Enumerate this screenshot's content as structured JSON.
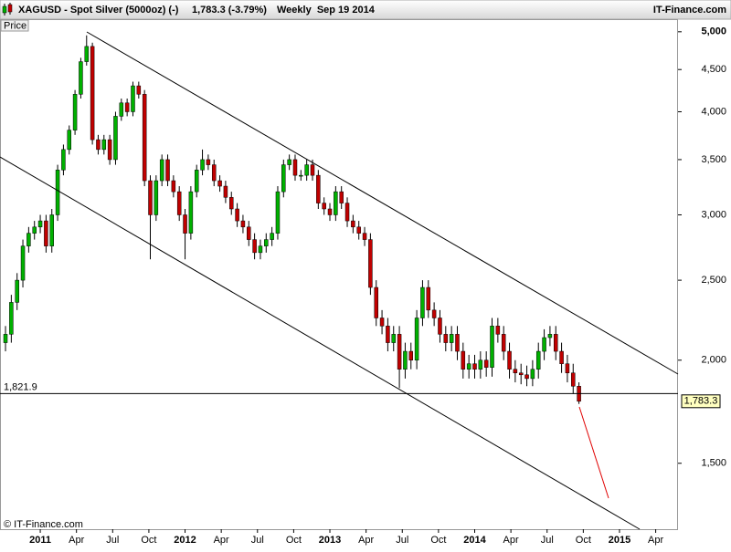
{
  "chart_data": {
    "type": "candlestick",
    "title": "XAGUSD - Spot Silver (5000oz) (-)",
    "quote": "1,783.3 (-3.79%)",
    "period": "Weekly  Sep 19 2014",
    "source": "IT-Finance.com",
    "y_label": "Price",
    "copyright": "© IT-Finance.com",
    "log_scale": true,
    "up_color": "#00b000",
    "down_color": "#c00000",
    "x": [
      2010.76,
      2010.8,
      2010.84,
      2010.88,
      2010.92,
      2010.96,
      2011,
      2011.04,
      2011.08,
      2011.12,
      2011.16,
      2011.2,
      2011.24,
      2011.28,
      2011.32,
      2011.36,
      2011.4,
      2011.44,
      2011.48,
      2011.52,
      2011.56,
      2011.6,
      2011.64,
      2011.68,
      2011.72,
      2011.76,
      2011.8,
      2011.84,
      2011.88,
      2011.92,
      2011.96,
      2012,
      2012.04,
      2012.08,
      2012.12,
      2012.16,
      2012.2,
      2012.24,
      2012.28,
      2012.32,
      2012.36,
      2012.4,
      2012.44,
      2012.48,
      2012.52,
      2012.56,
      2012.6,
      2012.64,
      2012.68,
      2012.72,
      2012.76,
      2012.8,
      2012.84,
      2012.88,
      2012.92,
      2012.96,
      2013,
      2013.04,
      2013.08,
      2013.12,
      2013.16,
      2013.2,
      2013.24,
      2013.28,
      2013.32,
      2013.36,
      2013.4,
      2013.44,
      2013.48,
      2013.52,
      2013.56,
      2013.6,
      2013.64,
      2013.68,
      2013.72,
      2013.76,
      2013.8,
      2013.84,
      2013.88,
      2013.92,
      2013.96,
      2014,
      2014.04,
      2014.08,
      2014.12,
      2014.16,
      2014.2,
      2014.24,
      2014.28,
      2014.32,
      2014.36,
      2014.4,
      2014.44,
      2014.48,
      2014.52,
      2014.56,
      2014.6,
      2014.64,
      2014.68,
      2014.72
    ],
    "open": [
      2100,
      2150,
      2350,
      2500,
      2750,
      2850,
      2900,
      2950,
      2750,
      3000,
      3400,
      3600,
      3800,
      4200,
      4600,
      4800,
      3700,
      3600,
      3700,
      3500,
      3950,
      4100,
      4000,
      4300,
      4200,
      3300,
      3000,
      3300,
      3500,
      3300,
      3200,
      3000,
      2850,
      3200,
      3400,
      3500,
      3450,
      3300,
      3250,
      3150,
      3050,
      2950,
      2900,
      2800,
      2700,
      2750,
      2800,
      2850,
      3200,
      3450,
      3500,
      3350,
      3350,
      3450,
      3350,
      3100,
      3050,
      3000,
      3200,
      3100,
      2950,
      2900,
      2850,
      2800,
      2450,
      2250,
      2200,
      2100,
      2150,
      1950,
      2050,
      2000,
      2250,
      2450,
      2300,
      2250,
      2150,
      2100,
      2150,
      2050,
      1950,
      1980,
      1950,
      2000,
      1960,
      2200,
      2150,
      2050,
      1950,
      1930,
      1920,
      1900,
      1950,
      2050,
      2130,
      2150,
      2050,
      1980,
      1930,
      1860
    ],
    "high": [
      2200,
      2400,
      2550,
      2800,
      2900,
      2950,
      3000,
      3000,
      3050,
      3450,
      3650,
      3850,
      4250,
      4650,
      4950,
      4850,
      3750,
      3750,
      3750,
      4000,
      4150,
      4150,
      4350,
      4350,
      4250,
      3350,
      3350,
      3550,
      3550,
      3350,
      3250,
      3050,
      3250,
      3450,
      3600,
      3550,
      3500,
      3350,
      3300,
      3200,
      3100,
      3000,
      2950,
      2850,
      2800,
      2850,
      2900,
      3250,
      3500,
      3550,
      3550,
      3400,
      3500,
      3500,
      3400,
      3150,
      3100,
      3250,
      3250,
      3150,
      3000,
      2950,
      2900,
      2850,
      2500,
      2300,
      2250,
      2200,
      2200,
      2100,
      2100,
      2300,
      2500,
      2500,
      2350,
      2300,
      2200,
      2200,
      2200,
      2100,
      2030,
      2030,
      2050,
      2050,
      2250,
      2250,
      2200,
      2100,
      2000,
      1980,
      1970,
      2000,
      2100,
      2180,
      2200,
      2200,
      2100,
      2030,
      1980,
      1880
    ],
    "low": [
      2050,
      2100,
      2300,
      2450,
      2700,
      2800,
      2850,
      2700,
      2700,
      2950,
      3350,
      3550,
      3750,
      4150,
      4550,
      3650,
      3550,
      3550,
      3450,
      3450,
      3900,
      3950,
      3950,
      4150,
      3250,
      2650,
      2950,
      3250,
      3250,
      3150,
      2950,
      2650,
      2800,
      3150,
      3350,
      3400,
      3250,
      3200,
      3100,
      3000,
      2900,
      2850,
      2750,
      2650,
      2650,
      2700,
      2750,
      2800,
      3150,
      3400,
      3300,
      3300,
      3300,
      3300,
      3050,
      3000,
      2950,
      2950,
      3050,
      2900,
      2850,
      2800,
      2750,
      2400,
      2200,
      2150,
      2050,
      2050,
      1850,
      1900,
      1950,
      1950,
      2200,
      2250,
      2200,
      2100,
      2050,
      2050,
      2000,
      1900,
      1900,
      1900,
      1900,
      1910,
      1910,
      2100,
      2000,
      1900,
      1880,
      1870,
      1860,
      1860,
      1900,
      2000,
      2080,
      2000,
      1930,
      1880,
      1820,
      1770
    ],
    "close": [
      2150,
      2350,
      2500,
      2750,
      2850,
      2900,
      2950,
      2750,
      3000,
      3400,
      3600,
      3800,
      4200,
      4600,
      4800,
      3700,
      3600,
      3700,
      3500,
      3950,
      4100,
      4000,
      4300,
      4200,
      3300,
      3000,
      3300,
      3500,
      3300,
      3200,
      3000,
      2850,
      3200,
      3400,
      3500,
      3450,
      3300,
      3250,
      3150,
      3050,
      2950,
      2900,
      2800,
      2700,
      2750,
      2800,
      2850,
      3200,
      3450,
      3500,
      3350,
      3350,
      3450,
      3350,
      3100,
      3050,
      3000,
      3200,
      3100,
      2950,
      2900,
      2850,
      2800,
      2450,
      2250,
      2200,
      2100,
      2150,
      1950,
      2050,
      2000,
      2250,
      2450,
      2300,
      2250,
      2150,
      2100,
      2150,
      2050,
      1950,
      1980,
      1950,
      2000,
      1960,
      2200,
      2150,
      2050,
      1950,
      1930,
      1920,
      1900,
      1950,
      2050,
      2130,
      2150,
      2050,
      1980,
      1930,
      1860,
      1783.3
    ],
    "xlim": [
      2010.722,
      2015.404
    ],
    "xticks": [
      2011,
      {
        "value": 2011.25,
        "label": "Apr"
      },
      {
        "value": 2011.5,
        "label": "Jul"
      },
      {
        "value": 2011.75,
        "label": "Oct"
      },
      2012,
      {
        "value": 2012.25,
        "label": "Apr"
      },
      {
        "value": 2012.5,
        "label": "Jul"
      },
      {
        "value": 2012.75,
        "label": "Oct"
      },
      2013,
      {
        "value": 2013.25,
        "label": "Apr"
      },
      {
        "value": 2013.5,
        "label": "Jul"
      },
      {
        "value": 2013.75,
        "label": "Oct"
      },
      2014,
      {
        "value": 2014.25,
        "label": "Apr"
      },
      {
        "value": 2014.5,
        "label": "Jul"
      },
      {
        "value": 2014.75,
        "label": "Oct"
      },
      2015,
      {
        "value": 2015.25,
        "label": "Apr"
      }
    ],
    "ylim": [
      1248,
      5166
    ],
    "yticks": [
      {
        "value": 1500,
        "label": "1,500"
      },
      {
        "value": 2000,
        "label": "2,000"
      },
      {
        "value": 2500,
        "label": "2,500"
      },
      {
        "value": 3000,
        "label": "3,000"
      },
      {
        "value": 3500,
        "label": "3,500"
      },
      {
        "value": 4000,
        "label": "4,000"
      },
      {
        "value": 4500,
        "label": "4,500"
      },
      {
        "value": 5000,
        "label": "5,000"
      }
    ],
    "hline": {
      "value": 1821.9,
      "label": "1,821.9"
    },
    "last": {
      "value": 1783.3,
      "label": "1,783.3"
    }
  }
}
